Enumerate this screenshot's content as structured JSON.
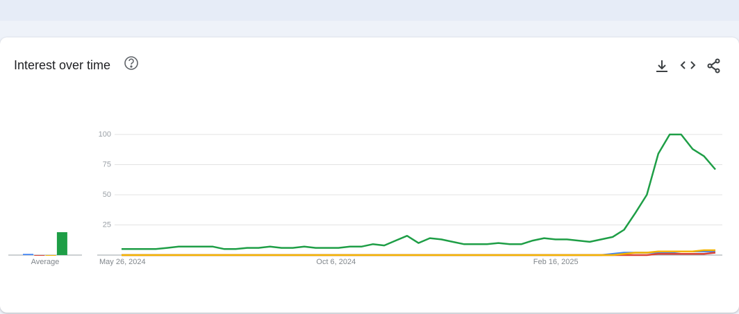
{
  "chart_data": {
    "type": "line",
    "title": "Interest over time",
    "average_label": "Average",
    "categories": [
      "May 26, 2024",
      null,
      null,
      null,
      null,
      null,
      null,
      null,
      null,
      null,
      null,
      null,
      null,
      null,
      null,
      null,
      null,
      null,
      null,
      "Oct 6, 2024",
      null,
      null,
      null,
      null,
      null,
      null,
      null,
      null,
      null,
      null,
      null,
      null,
      null,
      null,
      null,
      null,
      null,
      null,
      "Feb 16, 2025",
      null,
      null,
      null,
      null,
      null,
      null,
      null,
      null,
      null,
      null,
      null,
      null,
      null,
      null
    ],
    "ylim": [
      0,
      100
    ],
    "yticks": [
      25,
      50,
      75,
      100
    ],
    "grid": true,
    "series": [
      {
        "color": "#4285f4",
        "average": 1,
        "values": [
          0,
          0,
          0,
          0,
          0,
          0,
          0,
          0,
          0,
          0,
          0,
          0,
          0,
          0,
          0,
          0,
          0,
          0,
          0,
          0,
          0,
          0,
          0,
          0,
          0,
          0,
          0,
          0,
          0,
          0,
          0,
          0,
          0,
          0,
          0,
          0,
          0,
          0,
          0,
          0,
          0,
          0,
          0,
          1,
          2,
          2,
          2,
          2,
          2,
          3,
          3,
          3,
          3
        ]
      },
      {
        "color": "#db4437",
        "average": 0,
        "values": [
          0,
          0,
          0,
          0,
          0,
          0,
          0,
          0,
          0,
          0,
          0,
          0,
          0,
          0,
          0,
          0,
          0,
          0,
          0,
          0,
          0,
          0,
          0,
          0,
          0,
          0,
          0,
          0,
          0,
          0,
          0,
          0,
          0,
          0,
          0,
          0,
          0,
          0,
          0,
          0,
          0,
          0,
          0,
          0,
          0,
          0,
          0,
          1,
          1,
          1,
          1,
          1,
          2
        ]
      },
      {
        "color": "#f4b400",
        "average": 0,
        "values": [
          0,
          0,
          0,
          0,
          0,
          0,
          0,
          0,
          0,
          0,
          0,
          0,
          0,
          0,
          0,
          0,
          0,
          0,
          0,
          0,
          0,
          0,
          0,
          0,
          0,
          0,
          0,
          0,
          0,
          0,
          0,
          0,
          0,
          0,
          0,
          0,
          0,
          0,
          0,
          0,
          0,
          0,
          0,
          0,
          1,
          2,
          2,
          3,
          3,
          3,
          3,
          4,
          4
        ]
      },
      {
        "color": "#1e9e46",
        "average": 19,
        "values": [
          5,
          5,
          5,
          5,
          6,
          7,
          7,
          7,
          7,
          5,
          5,
          6,
          6,
          7,
          6,
          6,
          7,
          6,
          6,
          6,
          7,
          7,
          9,
          8,
          12,
          16,
          10,
          14,
          13,
          11,
          9,
          9,
          9,
          10,
          9,
          9,
          12,
          14,
          13,
          13,
          12,
          11,
          13,
          15,
          21,
          35,
          50,
          84,
          100,
          100,
          88,
          82,
          71
        ]
      }
    ]
  }
}
